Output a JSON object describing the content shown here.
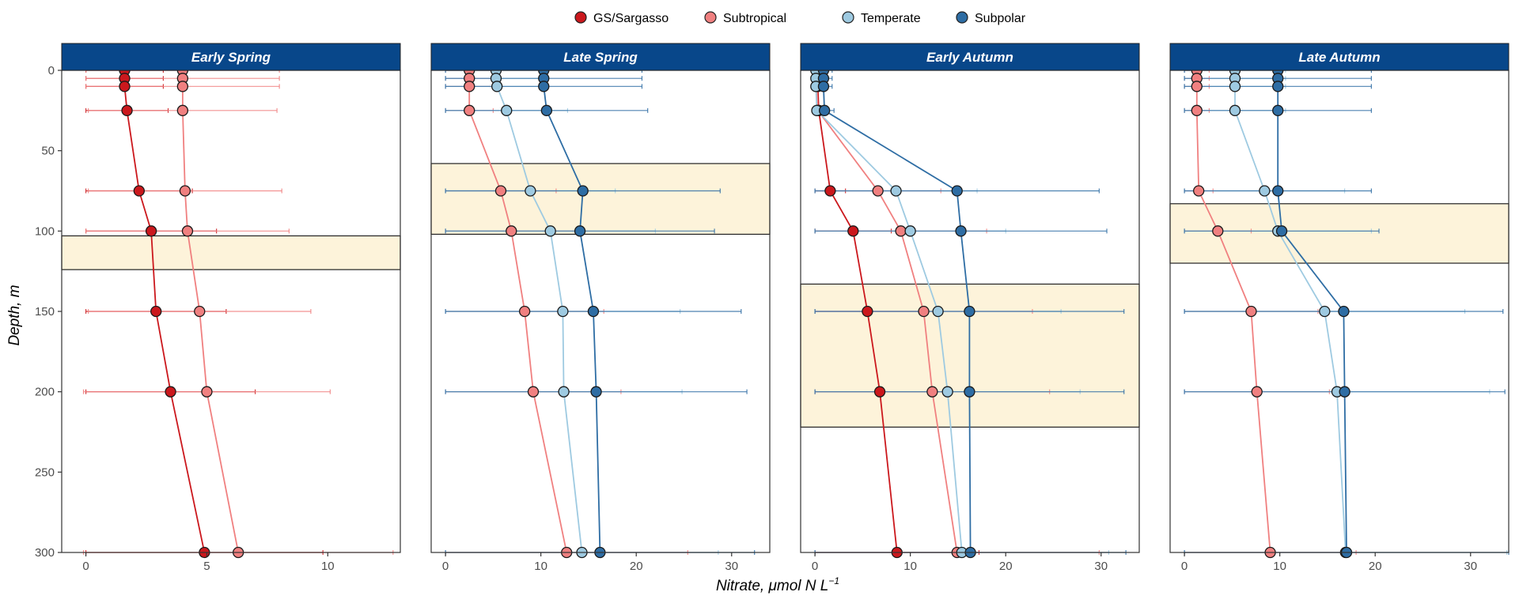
{
  "chart_data": {
    "type": "line",
    "x_axis_title": "Nitrate, μmol N L",
    "x_axis_title_superscript": "−1",
    "y_axis_title": "Depth, m",
    "y_ticks": [
      "0",
      "50",
      "100",
      "150",
      "200",
      "250",
      "300"
    ],
    "y_tick_values": [
      0,
      50,
      100,
      150,
      200,
      250,
      300
    ],
    "ylim": [
      0,
      300
    ],
    "y_reversed": true,
    "depths": [
      0,
      5,
      10,
      25,
      75,
      100,
      150,
      200,
      300
    ],
    "legend": {
      "position": "top",
      "items": [
        {
          "label": "GS/Sargasso",
          "color": "#CB181D"
        },
        {
          "label": "Subtropical",
          "color": "#F08080"
        },
        {
          "label": "Temperate",
          "color": "#9ECAE1"
        },
        {
          "label": "Subpolar",
          "color": "#2E6DA4"
        }
      ]
    },
    "panel_header_color": "#08478A",
    "mld_band_color": "#FDF3DA",
    "panels": [
      {
        "title": "Early Spring",
        "xlim": [
          -1,
          13
        ],
        "x_ticks": [
          "0",
          "5",
          "10"
        ],
        "x_tick_values": [
          0,
          5,
          10
        ],
        "band": [
          103,
          124
        ],
        "series": [
          {
            "series": 0,
            "values": [
              1.6,
              1.6,
              1.6,
              1.7,
              2.2,
              2.7,
              2.9,
              3.5,
              4.9
            ],
            "err": [
              1.6,
              1.6,
              1.6,
              1.7,
              2.2,
              2.7,
              2.9,
              3.5,
              4.9
            ]
          },
          {
            "series": 1,
            "values": [
              4.0,
              4.0,
              4.0,
              4.0,
              4.1,
              4.2,
              4.7,
              5.0,
              6.3
            ],
            "err": [
              4.0,
              4.0,
              4.0,
              3.9,
              4.0,
              4.2,
              4.6,
              5.1,
              6.4
            ]
          }
        ]
      },
      {
        "title": "Late Spring",
        "xlim": [
          -1.5,
          34
        ],
        "x_ticks": [
          "0",
          "10",
          "20",
          "30"
        ],
        "x_tick_values": [
          0,
          10,
          20,
          30
        ],
        "band": [
          58,
          102
        ],
        "series": [
          {
            "series": 1,
            "values": [
              2.5,
              2.5,
              2.5,
              2.5,
              5.8,
              6.9,
              8.3,
              9.2,
              12.7
            ],
            "err": [
              2.5,
              2.5,
              2.5,
              2.5,
              5.8,
              6.9,
              8.3,
              9.2,
              12.7
            ]
          },
          {
            "series": 2,
            "values": [
              5.3,
              5.3,
              5.4,
              6.4,
              8.9,
              11.0,
              12.3,
              12.4,
              14.3
            ],
            "err": [
              5.3,
              5.3,
              5.4,
              6.4,
              8.9,
              11.0,
              12.3,
              12.4,
              14.3
            ]
          },
          {
            "series": 3,
            "values": [
              10.3,
              10.3,
              10.3,
              10.6,
              14.4,
              14.1,
              15.5,
              15.8,
              16.2
            ],
            "err": [
              10.3,
              10.3,
              10.3,
              10.6,
              14.4,
              14.1,
              15.5,
              15.8,
              16.2
            ]
          }
        ]
      },
      {
        "title": "Early Autumn",
        "xlim": [
          -1.5,
          34
        ],
        "x_ticks": [
          "0",
          "10",
          "20",
          "30"
        ],
        "x_tick_values": [
          0,
          10,
          20,
          30
        ],
        "band": [
          133,
          222
        ],
        "series": [
          {
            "series": 0,
            "values": [
              0.3,
              0.3,
              0.3,
              0.4,
              1.6,
              4.0,
              5.5,
              6.8,
              8.6
            ],
            "err": [
              0.3,
              0.3,
              0.3,
              0.4,
              1.6,
              4.0,
              5.5,
              6.8,
              8.6
            ]
          },
          {
            "series": 1,
            "values": [
              0.2,
              0.2,
              0.2,
              0.3,
              6.6,
              9.0,
              11.4,
              12.3,
              14.9
            ],
            "err": [
              0.2,
              0.2,
              0.2,
              0.3,
              6.6,
              9.0,
              11.4,
              12.3,
              14.9
            ]
          },
          {
            "series": 2,
            "values": [
              0.1,
              0.1,
              0.1,
              0.2,
              8.5,
              10.0,
              12.9,
              13.9,
              15.4
            ],
            "err": [
              0.1,
              0.1,
              0.1,
              0.2,
              8.5,
              10.0,
              12.9,
              13.9,
              15.4
            ]
          },
          {
            "series": 3,
            "values": [
              0.9,
              0.9,
              0.9,
              1.0,
              14.9,
              15.3,
              16.2,
              16.2,
              16.3
            ],
            "err": [
              0.9,
              0.9,
              0.9,
              1.0,
              14.9,
              15.3,
              16.2,
              16.2,
              16.3
            ]
          }
        ]
      },
      {
        "title": "Late Autumn",
        "xlim": [
          -1.5,
          34
        ],
        "x_ticks": [
          "0",
          "10",
          "20",
          "30"
        ],
        "x_tick_values": [
          0,
          10,
          20,
          30
        ],
        "band": [
          83,
          120
        ],
        "series": [
          {
            "series": 1,
            "values": [
              1.3,
              1.3,
              1.3,
              1.3,
              1.5,
              3.5,
              7.0,
              7.6,
              9.0
            ],
            "err": [
              1.3,
              1.3,
              1.3,
              1.3,
              1.5,
              3.5,
              7.0,
              7.6,
              9.0
            ]
          },
          {
            "series": 2,
            "values": [
              5.3,
              5.3,
              5.3,
              5.3,
              8.4,
              9.8,
              14.7,
              16.0,
              16.9
            ],
            "err": [
              5.3,
              5.3,
              5.3,
              5.3,
              8.4,
              9.8,
              14.7,
              16.0,
              16.9
            ]
          },
          {
            "series": 3,
            "values": [
              9.8,
              9.8,
              9.8,
              9.8,
              9.8,
              10.2,
              16.7,
              16.8,
              17.0
            ],
            "err": [
              9.8,
              9.8,
              9.8,
              9.8,
              9.8,
              10.2,
              16.7,
              16.8,
              17.0
            ]
          }
        ]
      }
    ]
  }
}
